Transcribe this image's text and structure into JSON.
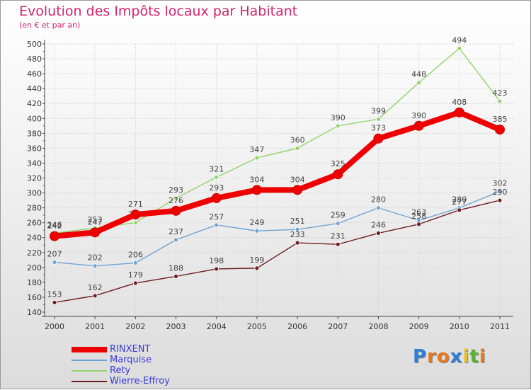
{
  "header": {
    "title": "Evolution des Impôts locaux par Habitant",
    "subtitle": "(en € et par an)"
  },
  "logo": {
    "letters": [
      "P",
      "r",
      "o",
      "x",
      "i",
      "t",
      "i"
    ],
    "colors": [
      "#2f7fd6",
      "#e8781e",
      "#e8781e",
      "#2f7fd6",
      "#e8c21e",
      "#59b32f",
      "#e8781e"
    ]
  },
  "chart_data": {
    "type": "line",
    "title": "Evolution des Impôts locaux par Habitant",
    "subtitle": "(en € et par an)",
    "x": [
      "2000",
      "2001",
      "2002",
      "2003",
      "2004",
      "2005",
      "2006",
      "2007",
      "2008",
      "2009",
      "2010",
      "2011"
    ],
    "ylim": [
      140,
      500
    ],
    "yticks": [
      140,
      160,
      180,
      200,
      220,
      240,
      260,
      280,
      300,
      320,
      340,
      360,
      380,
      400,
      420,
      440,
      460,
      480,
      500
    ],
    "grid": true,
    "legend_position": "bottom-left",
    "series": [
      {
        "name": "Rety",
        "color": "#90d46a",
        "values": [
          246,
          253,
          260,
          293,
          321,
          347,
          360,
          390,
          399,
          448,
          494,
          423
        ],
        "labels": [
          "246",
          "253",
          "260",
          "293",
          "321",
          "347",
          "360",
          "390",
          "399",
          "448",
          "494",
          "423"
        ]
      },
      {
        "name": "Marquise",
        "color": "#6fa3d6",
        "values": [
          207,
          202,
          206,
          237,
          257,
          249,
          251,
          259,
          280,
          263,
          280,
          302
        ],
        "labels": [
          "207",
          "202",
          "206",
          "237",
          "257",
          "249",
          "251",
          "259",
          "280",
          "263",
          "280",
          "302"
        ]
      },
      {
        "name": "Wierre-Effroy",
        "color": "#6e1d1d",
        "values": [
          153,
          162,
          179,
          188,
          198,
          199,
          233,
          231,
          246,
          258,
          277,
          290
        ],
        "labels": [
          "153",
          "162",
          "179",
          "188",
          "198",
          "199",
          "233",
          "231",
          "246",
          "258",
          "277",
          "290"
        ]
      },
      {
        "name": "RINXENT",
        "color": "#ee0000",
        "values": [
          242,
          247,
          271,
          276,
          293,
          304,
          304,
          325,
          373,
          390,
          408,
          385
        ],
        "labels": [
          "242",
          "247",
          "271",
          "276",
          "293",
          "304",
          "304",
          "325",
          "373",
          "390",
          "408",
          "385"
        ]
      }
    ],
    "legend_order": [
      "RINXENT",
      "Marquise",
      "Rety",
      "Wierre-Effroy"
    ]
  }
}
